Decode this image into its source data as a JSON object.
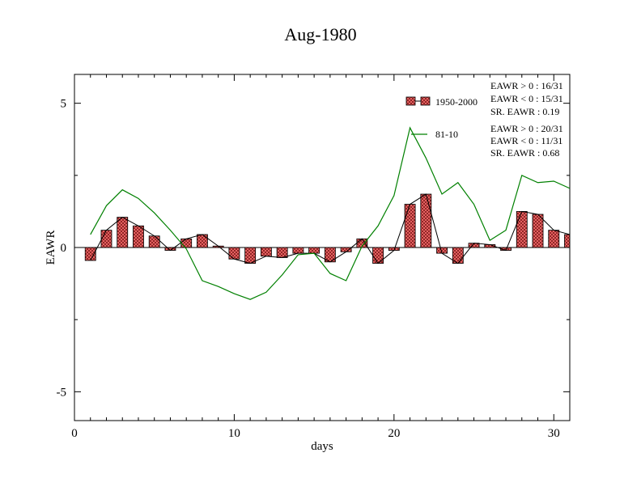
{
  "chart_data": {
    "type": "bar",
    "title": "Aug-1980",
    "xlabel": "days",
    "ylabel": "EAWR",
    "xlim": [
      0,
      31
    ],
    "ylim": [
      -6,
      6
    ],
    "xticks": [
      0,
      10,
      20,
      30
    ],
    "yticks": [
      -5,
      0,
      5
    ],
    "x": [
      1,
      2,
      3,
      4,
      5,
      6,
      7,
      8,
      9,
      10,
      11,
      12,
      13,
      14,
      15,
      16,
      17,
      18,
      19,
      20,
      21,
      22,
      23,
      24,
      25,
      26,
      27,
      28,
      29,
      30,
      31
    ],
    "series": [
      {
        "name": "1950-2000",
        "kind": "bar-with-line",
        "values": [
          -0.45,
          0.6,
          1.05,
          0.75,
          0.4,
          -0.1,
          0.3,
          0.45,
          0.05,
          -0.4,
          -0.55,
          -0.3,
          -0.35,
          -0.2,
          -0.2,
          -0.5,
          -0.15,
          0.3,
          -0.55,
          -0.1,
          1.5,
          1.85,
          -0.2,
          -0.55,
          0.15,
          0.1,
          -0.1,
          1.25,
          1.15,
          0.6,
          0.45
        ]
      },
      {
        "name": "81-10",
        "kind": "line",
        "values": [
          0.45,
          1.45,
          2.0,
          1.7,
          1.2,
          0.6,
          -0.05,
          -1.15,
          -1.35,
          -1.6,
          -1.8,
          -1.55,
          -0.95,
          -0.25,
          -0.2,
          -0.9,
          -1.15,
          0.05,
          0.75,
          1.8,
          4.15,
          3.1,
          1.85,
          2.25,
          1.5,
          0.25,
          0.6,
          2.5,
          2.25,
          2.3,
          2.05
        ]
      }
    ],
    "colors": {
      "bar_fill": "#f07070",
      "bar_stroke": "#000000",
      "line_81_10": "#008000",
      "line_1950": "#000000"
    },
    "annotations": [
      [
        "EAWR > 0 : 16/31",
        "EAWR < 0 : 15/31",
        "SR. EAWR :  0.19"
      ],
      [
        "EAWR > 0 : 20/31",
        "EAWR < 0 : 11/31",
        "SR. EAWR :  0.68"
      ]
    ],
    "grid": false,
    "legend_position": "top-right"
  }
}
